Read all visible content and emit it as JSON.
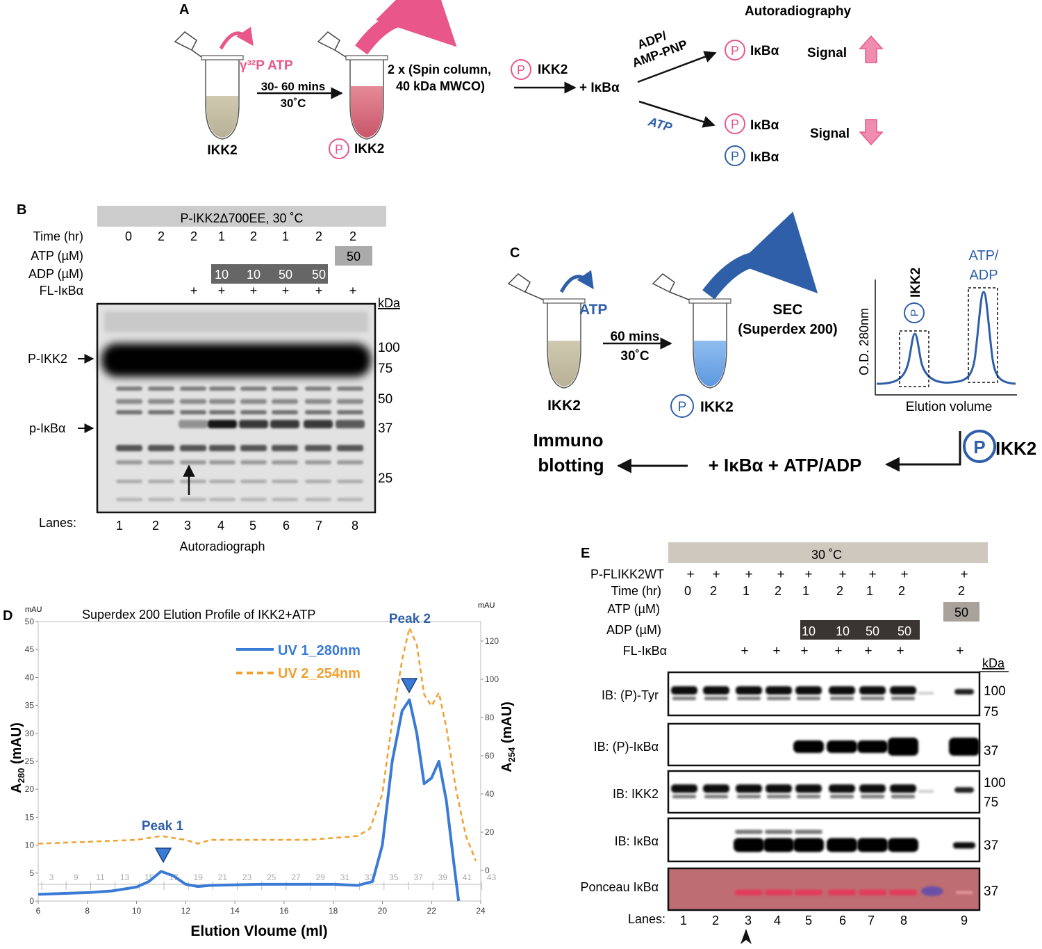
{
  "panel_a": {
    "letter": "A",
    "tube1_label": "IKK2",
    "atp_label": "γ³²P ATP",
    "step1_line1": "30- 60 mins",
    "step1_line2": "30˚C",
    "tube2_label": "IKK2",
    "p_symbol": "P",
    "spin_line1": "2 x (Spin column,",
    "spin_line2": "40 kDa MWCO)",
    "pikk2_label": "IKK2",
    "plus_ikba": "+ IκBα",
    "autoradiography": "Autoradiography",
    "branch_top_line1": "ADP/",
    "branch_top_line2": "AMP-PNP",
    "branch_bottom": "ATP",
    "ikba": "IκBα",
    "signal": "Signal",
    "colors": {
      "pink": "#e8568a",
      "pink_light": "#f08cb0",
      "blue": "#2f5fa8",
      "tube_gray": "#c8c2a8",
      "tube_pink": "#d76a7c"
    }
  },
  "panel_b": {
    "letter": "B",
    "header": "P-IKK2Δ700EE, 30 ˚C",
    "row_labels": [
      "Time (hr)",
      "ATP (µM)",
      "ADP (µM)",
      "FL-IκBα"
    ],
    "time": [
      "0",
      "2",
      "2",
      "1",
      "2",
      "1",
      "2",
      "2"
    ],
    "atp": "50",
    "adp": [
      "10",
      "10",
      "50",
      "50"
    ],
    "fl": [
      "",
      "",
      "+",
      "+",
      "+",
      "+",
      "+",
      "+"
    ],
    "kda": "kDa",
    "markers": [
      "100",
      "75",
      "50",
      "37",
      "25"
    ],
    "left_labels": [
      "P-IKK2",
      "p-IκBα"
    ],
    "lanes_label": "Lanes:",
    "lanes": [
      "1",
      "2",
      "3",
      "4",
      "5",
      "6",
      "7",
      "8"
    ],
    "caption": "Autoradiograph"
  },
  "panel_c": {
    "letter": "C",
    "atp": "ATP",
    "step_line1": "60 mins",
    "step_line2": "30˚C",
    "tube1_label": "IKK2",
    "tube2_label": "IKK2",
    "p_symbol": "P",
    "sec_line1": "SEC",
    "sec_line2": "(Superdex 200)",
    "inset_ylabel": "O.D. 280nm",
    "inset_xlabel": "Elution volume",
    "inset_peak1": "IKK2",
    "inset_peak2_line1": "ATP/",
    "inset_peak2_line2": "ADP",
    "pikk2": "IKK2",
    "immuno_line1": "Immuno",
    "immuno_line2": "blotting",
    "mix": "+ IκBα + ATP/ADP"
  },
  "panel_d": {
    "letter": "D",
    "chart_data": {
      "type": "line",
      "title": "Superdex 200 Elution Profile of IKK2+ATP",
      "xlabel": "Elution Vloume (ml)",
      "ylabel": "A280 (mAU)",
      "y2label": "A254 (mAU)",
      "yunit": "mAU",
      "xlim": [
        6,
        24
      ],
      "ylim": [
        0,
        50
      ],
      "y2lim": [
        -20,
        130
      ],
      "xticks": [
        "6",
        "8",
        "10",
        "12",
        "14",
        "16",
        "18",
        "20",
        "22",
        "24"
      ],
      "yticks": [
        "0",
        "5",
        "10",
        "15",
        "20",
        "25",
        "30",
        "35",
        "40",
        "45",
        "50"
      ],
      "y2ticks": [
        "0",
        "20",
        "40",
        "60",
        "80",
        "100",
        "120"
      ],
      "fractions": [
        "3",
        "9",
        "11",
        "13",
        "15",
        "17",
        "19",
        "21",
        "23",
        "25",
        "27",
        "29",
        "31",
        "33",
        "35",
        "37",
        "39",
        "41",
        "43"
      ],
      "series": [
        {
          "name": "UV 1_280nm",
          "color": "#3a7bd5",
          "axis": "left",
          "x": [
            6,
            8,
            9,
            10,
            10.5,
            11,
            11.5,
            12,
            12.5,
            13,
            15,
            17,
            18,
            19,
            19.6,
            20,
            20.4,
            20.8,
            21.1,
            21.4,
            21.7,
            22.0,
            22.3,
            22.6,
            22.9,
            23.1
          ],
          "values": [
            1.2,
            1.5,
            1.8,
            2.5,
            3.5,
            5.3,
            4.5,
            3.0,
            2.6,
            2.8,
            3.0,
            3.0,
            3.0,
            2.8,
            3.5,
            10,
            25,
            34,
            36,
            30,
            21,
            22,
            25,
            18,
            7,
            0
          ]
        },
        {
          "name": "UV 2_254nm",
          "color": "#f0a030",
          "axis": "right",
          "x": [
            6,
            8,
            10,
            11,
            12,
            12.5,
            13,
            15,
            17,
            18,
            19,
            19.5,
            20,
            20.4,
            20.8,
            21.1,
            21.4,
            21.7,
            22.0,
            22.3,
            22.6,
            23.0,
            23.4,
            23.8
          ],
          "values": [
            14,
            15,
            16,
            18,
            16,
            14,
            16,
            16,
            16,
            17,
            18,
            22,
            40,
            78,
            110,
            127,
            118,
            92,
            86,
            93,
            75,
            42,
            18,
            5
          ]
        }
      ],
      "annotations": [
        "Peak 1",
        "Peak 2"
      ]
    }
  },
  "panel_e": {
    "letter": "E",
    "header": "30 ˚C",
    "row_labels": [
      "P-FLIKK2WT",
      "Time (hr)",
      "ATP (µM)",
      "ADP (µM)",
      "FL-IκBα"
    ],
    "pflikk": [
      "+",
      "+",
      "+",
      "+",
      "+",
      "+",
      "+",
      "+",
      "+"
    ],
    "time": [
      "0",
      "2",
      "1",
      "2",
      "1",
      "2",
      "1",
      "2",
      "2"
    ],
    "atp": "50",
    "adp": [
      "10",
      "10",
      "50",
      "50"
    ],
    "fl": [
      "",
      "",
      "+",
      "+",
      "+",
      "+",
      "+",
      "+",
      "+"
    ],
    "kda": "kDa",
    "blots": [
      {
        "label": "IB: (P)-Tyr",
        "markers": [
          "100",
          "75"
        ]
      },
      {
        "label": "IB: (P)-IκBα",
        "markers": [
          "37"
        ]
      },
      {
        "label": "IB: IKK2",
        "markers": [
          "100",
          "75"
        ]
      },
      {
        "label": "IB: IκBα",
        "markers": [
          "37"
        ]
      },
      {
        "label": "Ponceau IκBα",
        "markers": [
          "37"
        ]
      }
    ],
    "lanes_label": "Lanes:",
    "lanes": [
      "1",
      "2",
      "3",
      "4",
      "5",
      "6",
      "7",
      "8",
      "9"
    ]
  }
}
